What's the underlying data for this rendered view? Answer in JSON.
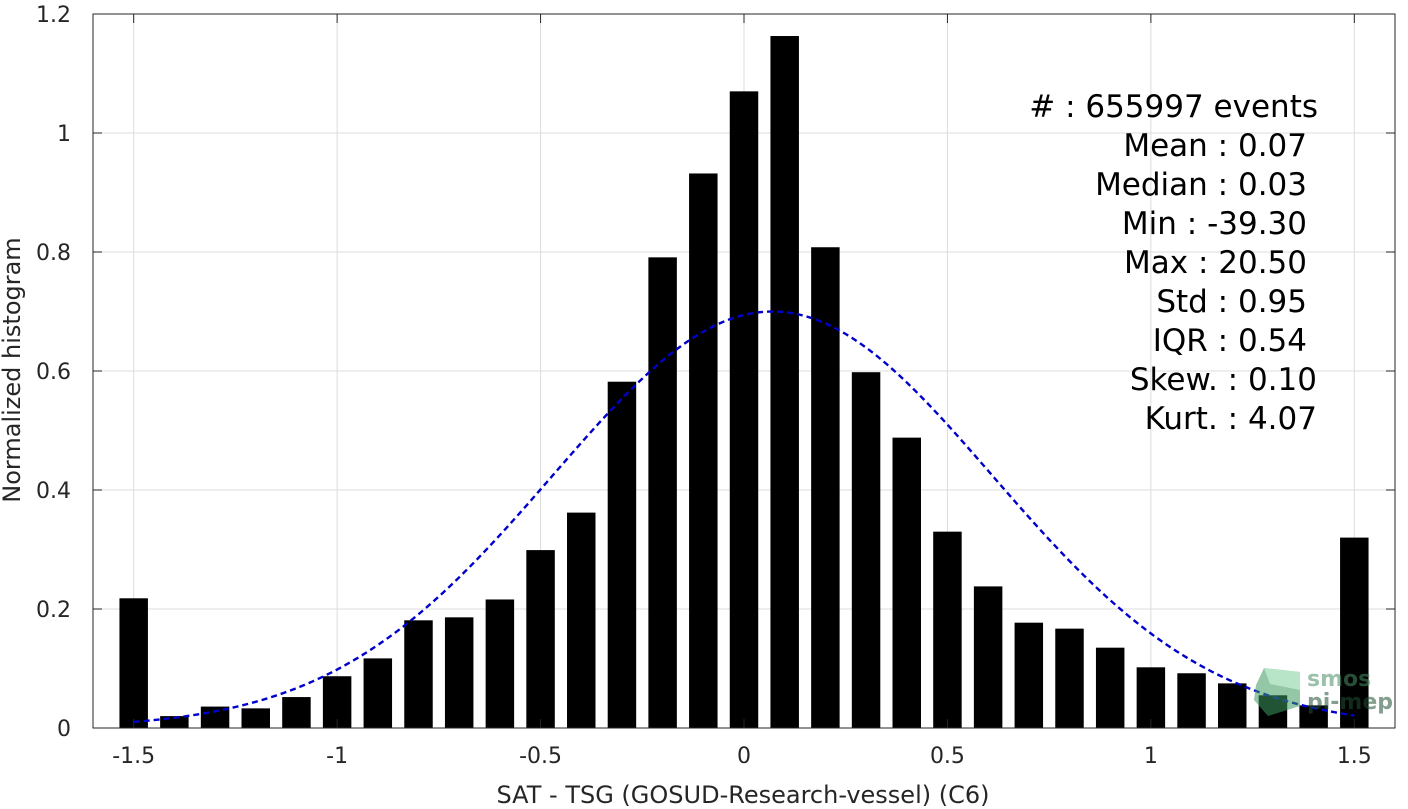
{
  "chart_data": {
    "type": "bar",
    "xlabel": "SAT - TSG (GOSUD-Research-vessel) (C6)",
    "ylabel": "Normalized histogram",
    "xlim": [
      -1.6,
      1.6
    ],
    "ylim": [
      0,
      1.2
    ],
    "grid": true,
    "x_ticks": [
      -1.5,
      -1,
      -0.5,
      0,
      0.5,
      1,
      1.5
    ],
    "x_tick_labels": [
      "-1.5",
      "-1",
      "-0.5",
      "0",
      "0.5",
      "1",
      "1.5"
    ],
    "y_ticks": [
      0,
      0.2,
      0.4,
      0.6,
      0.8,
      1,
      1.2
    ],
    "y_tick_labels": [
      "0",
      "0.2",
      "0.4",
      "0.6",
      "0.8",
      "1",
      "1.2"
    ],
    "bin_width": 0.1,
    "bar_relative_width": 0.7,
    "series": [
      {
        "type": "bar",
        "color": "#000000",
        "x": [
          -1.5,
          -1.4,
          -1.3,
          -1.2,
          -1.1,
          -1.0,
          -0.9,
          -0.8,
          -0.7,
          -0.6,
          -0.5,
          -0.4,
          -0.3,
          -0.2,
          -0.1,
          0.0,
          0.1,
          0.2,
          0.3,
          0.4,
          0.5,
          0.6,
          0.7,
          0.8,
          0.9,
          1.0,
          1.1,
          1.2,
          1.3,
          1.4,
          1.5
        ],
        "values": [
          0.218,
          0.02,
          0.036,
          0.033,
          0.052,
          0.087,
          0.117,
          0.181,
          0.186,
          0.216,
          0.299,
          0.362,
          0.582,
          0.791,
          0.932,
          1.07,
          1.163,
          0.808,
          0.598,
          0.488,
          0.33,
          0.238,
          0.177,
          0.167,
          0.135,
          0.102,
          0.092,
          0.075,
          0.055,
          0.038,
          0.32
        ]
      },
      {
        "type": "line",
        "style": "dashed",
        "color": "#0000cc",
        "fit": "normal",
        "x_range": [
          -1.5,
          1.5
        ],
        "peak": 0.7,
        "center": 0.07,
        "sigma": 0.54
      }
    ]
  },
  "stats": [
    {
      "label": "#",
      "sep": " : ",
      "value": "655997 events"
    },
    {
      "label": "Mean",
      "sep": " : ",
      "value": "0.07"
    },
    {
      "label": "Median",
      "sep": " : ",
      "value": "0.03"
    },
    {
      "label": "Min",
      "sep": " : ",
      "value": "-39.30"
    },
    {
      "label": "Max",
      "sep": " : ",
      "value": "20.50"
    },
    {
      "label": "Std",
      "sep": " : ",
      "value": "0.95"
    },
    {
      "label": "IQR",
      "sep": " : ",
      "value": "0.54"
    },
    {
      "label": "Skew.",
      "sep": " : ",
      "value": "0.10"
    },
    {
      "label": "Kurt.",
      "sep": " : ",
      "value": "4.07"
    }
  ],
  "logo": {
    "line1": "smos",
    "line2": "pi-mep"
  }
}
